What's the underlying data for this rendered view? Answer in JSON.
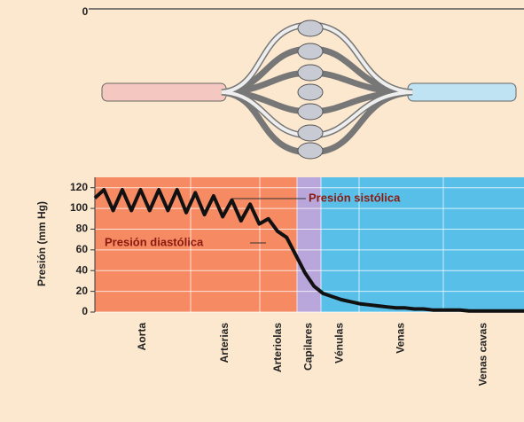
{
  "chart_data": {
    "type": "line",
    "diagram_label": "0",
    "y_label": "Presión (mm Hg)",
    "regions": [
      "Aorta",
      "Arterias",
      "Arteriolas",
      "Capilares",
      "Vénulas",
      "Venas",
      "Venas cavas"
    ],
    "region_colors": [
      "#f58a63",
      "#f58a63",
      "#f58a63",
      "#b9a7dc",
      "#58bfe9",
      "#58bfe9",
      "#58bfe9"
    ],
    "values": [
      110,
      118,
      98,
      118,
      98,
      118,
      98,
      118,
      98,
      118,
      96,
      115,
      94,
      112,
      92,
      108,
      88,
      104,
      85,
      90,
      78,
      72,
      55,
      38,
      25,
      18,
      15,
      12,
      10,
      8,
      7,
      6,
      5,
      4,
      4,
      3,
      3,
      2,
      2,
      2,
      2,
      1,
      1,
      1,
      1,
      1,
      1,
      1
    ],
    "color": "#111111",
    "ylim": [
      0,
      130
    ],
    "yticks": [
      0,
      20,
      40,
      60,
      80,
      100,
      120
    ],
    "grid": true,
    "annotations": [
      "Presión sistólica",
      "Presión diastólica"
    ]
  }
}
